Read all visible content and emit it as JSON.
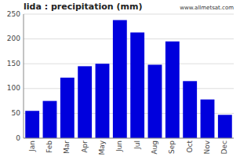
{
  "chart_data": {
    "type": "bar",
    "title": "lida : precipitation (mm)",
    "categories": [
      "Jan",
      "Feb",
      "Mar",
      "Apr",
      "May",
      "Jun",
      "Jul",
      "Aug",
      "Sep",
      "Oct",
      "Nov",
      "Dec"
    ],
    "values": [
      55,
      75,
      122,
      145,
      150,
      238,
      213,
      148,
      195,
      115,
      78,
      47
    ],
    "color": "#0000dd",
    "ylim": [
      0,
      250
    ],
    "yticks": [
      0,
      50,
      100,
      150,
      200,
      250
    ],
    "grid": true,
    "annotations": [
      "www.allmetsat.com"
    ]
  }
}
